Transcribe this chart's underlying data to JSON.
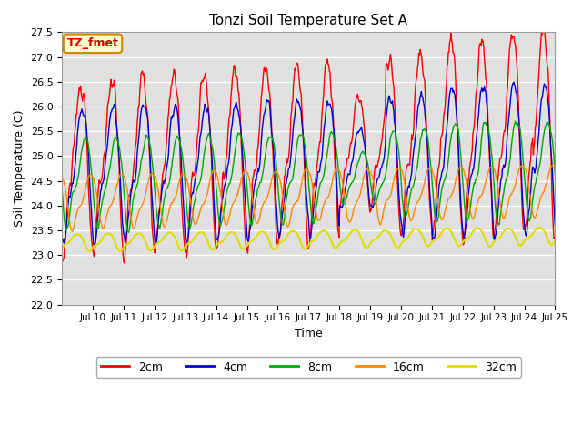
{
  "title": "Tonzi Soil Temperature Set A",
  "xlabel": "Time",
  "ylabel": "Soil Temperature (C)",
  "ylim": [
    22.0,
    27.5
  ],
  "yticks": [
    22.0,
    22.5,
    23.0,
    23.5,
    24.0,
    24.5,
    25.0,
    25.5,
    26.0,
    26.5,
    27.0,
    27.5
  ],
  "bg_color": "#e0e0e0",
  "lines": {
    "2cm": {
      "color": "#ff0000",
      "label": "2cm"
    },
    "4cm": {
      "color": "#0000cc",
      "label": "4cm"
    },
    "8cm": {
      "color": "#00aa00",
      "label": "8cm"
    },
    "16cm": {
      "color": "#ff8800",
      "label": "16cm"
    },
    "32cm": {
      "color": "#dddd00",
      "label": "32cm"
    }
  },
  "annotation_label": "TZ_fmet",
  "annotation_bg": "#ffffcc",
  "annotation_fg": "#cc0000",
  "annotation_border": "#cc8800",
  "start_day": 9,
  "end_day": 25,
  "xtick_days": [
    10,
    11,
    12,
    13,
    14,
    15,
    16,
    17,
    18,
    19,
    20,
    21,
    22,
    23,
    24,
    25
  ]
}
